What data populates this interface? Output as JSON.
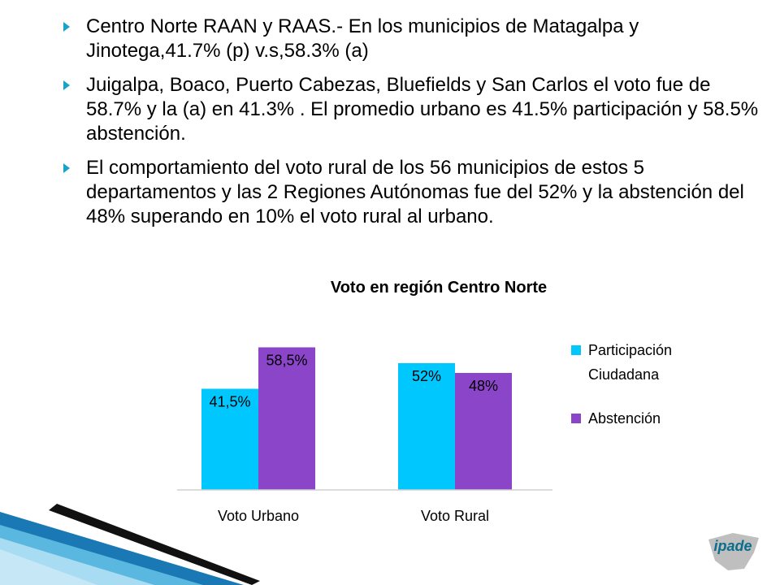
{
  "bullets": [
    "Centro Norte RAAN y RAAS.- En los municipios de Matagalpa y Jinotega,41.7% (p) v.s,58.3% (a)",
    "Juigalpa, Boaco, Puerto Cabezas, Bluefields y San Carlos el voto fue de 58.7% y la (a) en 41.3% .  El promedio urbano es  41.5% participación y 58.5% abstención.",
    "El comportamiento del voto rural de los 56 municipios de estos 5 departamentos y las 2 Regiones Autónomas fue del 52%  y la abstención del 48% superando  en 10% el voto rural al urbano."
  ],
  "chart_data": {
    "type": "bar",
    "title": "Voto en región Centro Norte",
    "categories": [
      "Voto Urbano",
      "Voto Rural"
    ],
    "series": [
      {
        "name": "Participación Ciudadana",
        "legend_lines": [
          "Participación",
          "Ciudadana"
        ],
        "values": [
          41.5,
          52
        ],
        "labels": [
          "41,5%",
          "52%"
        ],
        "color": "#00c8ff"
      },
      {
        "name": "Abstención",
        "legend_lines": [
          "Abstención"
        ],
        "values": [
          58.5,
          48
        ],
        "labels": [
          "58,5%",
          "48%"
        ],
        "color": "#8b45c8"
      }
    ],
    "ylim": [
      0,
      70
    ],
    "grid": false,
    "legend": "right"
  },
  "logo": {
    "text": "ipade",
    "accent": "#0a6e8c",
    "shape_color": "#8a8a8a"
  }
}
